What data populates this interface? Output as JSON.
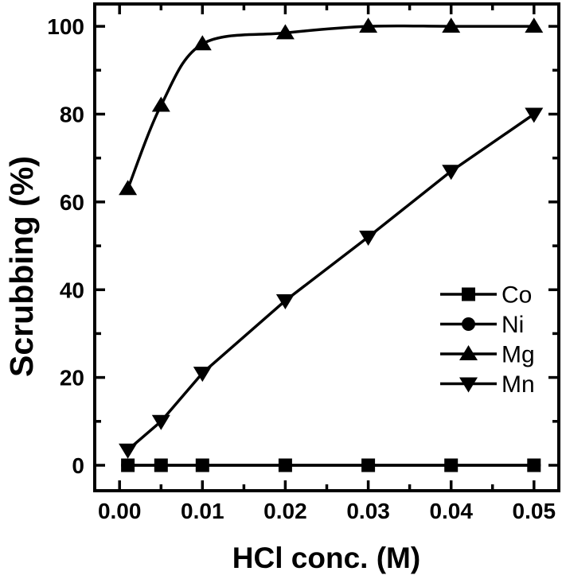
{
  "figure": {
    "background": "#ffffff",
    "foreground": "#000000"
  },
  "chart_data": {
    "type": "line",
    "title": "",
    "xlabel": "HCl conc. (M)",
    "ylabel": "Scrubbing (%)",
    "xlim": [
      -0.003,
      0.053
    ],
    "ylim": [
      -5.8,
      105.1
    ],
    "grid": false,
    "x_major_ticks": [
      0.0,
      0.01,
      0.02,
      0.03,
      0.04,
      0.05
    ],
    "x_major_tick_labels": [
      "0.00",
      "0.01",
      "0.02",
      "0.03",
      "0.04",
      "0.05"
    ],
    "x_minor_ticks": [
      0.005,
      0.015,
      0.025,
      0.035,
      0.045
    ],
    "y_major_ticks": [
      0,
      20,
      40,
      60,
      80,
      100
    ],
    "y_major_tick_labels": [
      "0",
      "20",
      "40",
      "60",
      "80",
      "100"
    ],
    "y_minor_ticks": [
      10,
      30,
      50,
      70,
      90
    ],
    "x": [
      0.001,
      0.005,
      0.01,
      0.02,
      0.03,
      0.04,
      0.05
    ],
    "series": [
      {
        "name": "Co",
        "marker": "square",
        "smooth": false,
        "values": [
          0,
          0,
          0,
          0,
          0,
          0,
          0
        ]
      },
      {
        "name": "Ni",
        "marker": "circle",
        "smooth": false,
        "values": [
          0,
          0,
          0,
          0,
          0,
          0,
          0
        ]
      },
      {
        "name": "Mg",
        "marker": "triangle-up",
        "smooth": true,
        "values": [
          63,
          82,
          96,
          98.5,
          100,
          100,
          100
        ]
      },
      {
        "name": "Mn",
        "marker": "triangle-down",
        "smooth": false,
        "values": [
          3.5,
          10,
          21,
          37.5,
          52,
          67,
          80
        ]
      }
    ],
    "legend_position": "right-middle",
    "line_color": "#000000"
  }
}
